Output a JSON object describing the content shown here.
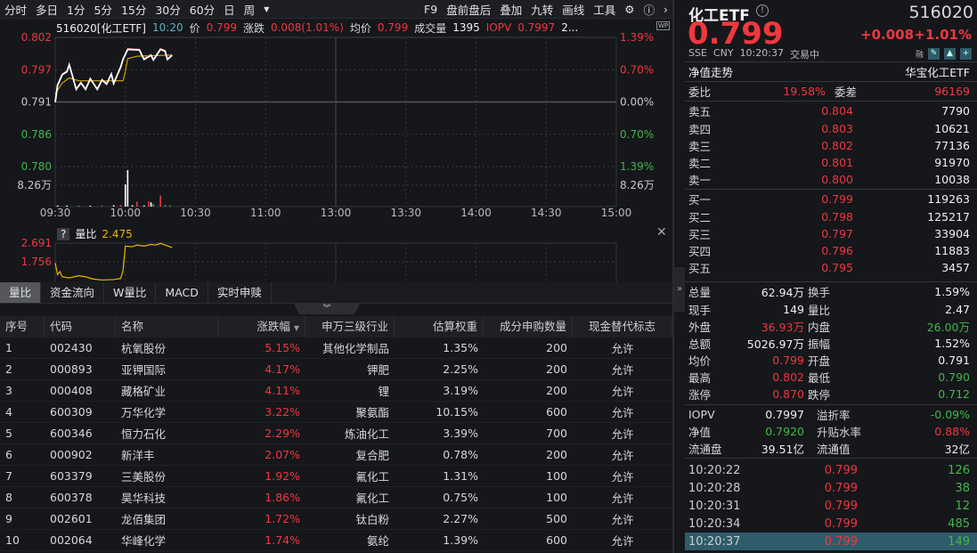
{
  "toolbar": {
    "periods": [
      "分时",
      "多日",
      "1分",
      "5分",
      "15分",
      "30分",
      "60分",
      "日",
      "周"
    ],
    "more_icon": "caret-down",
    "tools": [
      "F9",
      "盘前盘后",
      "叠加",
      "九转",
      "画线",
      "工具"
    ],
    "settings_icon": "gear",
    "help_icon": "question-circle",
    "next_icon": "chevron-right"
  },
  "infobar": {
    "title": "516020[化工ETF]",
    "time": "10:20",
    "price_label": "价",
    "price": "0.799",
    "change_label": "涨跌",
    "change": "0.008(1.01%)",
    "avg_label": "均价",
    "avg": "0.799",
    "vol_label": "成交量",
    "vol": "1395",
    "iopv_label": "IOPV",
    "iopv": "0.7997",
    "more": "2...",
    "wp_badge": "WP"
  },
  "colors": {
    "up": "#f0373e",
    "down": "#43b649",
    "price_line": "#ffffff",
    "avg_line": "#f2b600",
    "highlight": "#2e5c6a"
  },
  "chart_data": [
    {
      "type": "line",
      "y_ticks_left": [
        "0.802",
        "0.797",
        "0.791",
        "0.786",
        "0.780"
      ],
      "y_ticks_right": [
        "1.39%",
        "0.70%",
        "0.00%",
        "0.70%",
        "1.39%"
      ],
      "prev_close": 0.791,
      "ylim": [
        0.78,
        0.802
      ],
      "x_ticks": [
        "09:30",
        "10:00",
        "10:30",
        "11:00",
        "13:00",
        "13:30",
        "14:00",
        "14:30",
        "15:00"
      ],
      "price": [
        [
          "09:30",
          0.7911
        ],
        [
          "09:31",
          0.794
        ],
        [
          "09:33",
          0.7958
        ],
        [
          "09:35",
          0.7963
        ],
        [
          "09:36",
          0.7975
        ],
        [
          "09:39",
          0.7933
        ],
        [
          "09:41",
          0.7944
        ],
        [
          "09:43",
          0.7933
        ],
        [
          "09:45",
          0.7951
        ],
        [
          "09:48",
          0.7933
        ],
        [
          "09:50",
          0.7949
        ],
        [
          "09:52",
          0.7942
        ],
        [
          "09:54",
          0.7959
        ],
        [
          "09:55",
          0.7943
        ],
        [
          "09:58",
          0.7971
        ],
        [
          "09:59",
          0.7984
        ],
        [
          "10:01",
          0.8001
        ],
        [
          "10:06",
          0.8
        ],
        [
          "10:08",
          0.7984
        ],
        [
          "10:11",
          0.7991
        ],
        [
          "10:12",
          0.7983
        ],
        [
          "10:15",
          0.8001
        ],
        [
          "10:17",
          0.7998
        ],
        [
          "10:18",
          0.7984
        ],
        [
          "10:20",
          0.7991
        ]
      ],
      "avg": [
        [
          "09:30",
          0.7924
        ],
        [
          "09:33",
          0.7942
        ],
        [
          "09:36",
          0.7951
        ],
        [
          "09:40",
          0.7946
        ],
        [
          "09:59",
          0.7946
        ],
        [
          "10:00",
          0.7962
        ],
        [
          "10:01",
          0.7984
        ],
        [
          "10:05",
          0.7988
        ],
        [
          "10:20",
          0.799
        ]
      ],
      "volume_label": "8.26万",
      "volume_max": 16.52,
      "volume": [
        [
          "09:31",
          0.5,
          "w"
        ],
        [
          "09:35",
          0.5,
          "w"
        ],
        [
          "09:40",
          0.4,
          "g"
        ],
        [
          "09:45",
          0.4,
          "w"
        ],
        [
          "09:50",
          0.5,
          "r"
        ],
        [
          "09:55",
          0.6,
          "w"
        ],
        [
          "09:58",
          0.8,
          "r"
        ],
        [
          "10:00",
          9.8,
          "w"
        ],
        [
          "10:01",
          16.1,
          "w"
        ],
        [
          "10:03",
          0.6,
          "w"
        ],
        [
          "10:05",
          2.2,
          "r"
        ],
        [
          "10:08",
          0.5,
          "w"
        ],
        [
          "10:10",
          2.3,
          "r"
        ],
        [
          "10:11",
          1.9,
          "w"
        ],
        [
          "10:12",
          1.1,
          "g"
        ],
        [
          "10:15",
          4.9,
          "r"
        ],
        [
          "10:17",
          0.6,
          "g"
        ],
        [
          "10:19",
          0.5,
          "g"
        ]
      ]
    },
    {
      "type": "line",
      "title": "量比",
      "current": "2.475",
      "y_ticks": [
        "2.691",
        "1.756"
      ],
      "ylim": [
        0.8,
        2.691
      ],
      "values": [
        [
          "09:30",
          1.75
        ],
        [
          "09:31",
          1.2
        ],
        [
          "09:32",
          1.35
        ],
        [
          "09:33",
          1.1
        ],
        [
          "09:36",
          1.05
        ],
        [
          "09:38",
          1.1
        ],
        [
          "09:40",
          1.15
        ],
        [
          "09:43",
          1.1
        ],
        [
          "09:46",
          1.0
        ],
        [
          "09:50",
          0.95
        ],
        [
          "09:55",
          0.97
        ],
        [
          "09:58",
          1.02
        ],
        [
          "09:59",
          1.4
        ],
        [
          "10:00",
          2.55
        ],
        [
          "10:03",
          2.52
        ],
        [
          "10:05",
          2.6
        ],
        [
          "10:08",
          2.55
        ],
        [
          "10:11",
          2.63
        ],
        [
          "10:13",
          2.6
        ],
        [
          "10:15",
          2.68
        ],
        [
          "10:17",
          2.6
        ],
        [
          "10:18",
          2.56
        ],
        [
          "10:20",
          2.48
        ]
      ]
    }
  ],
  "subchart": {
    "help": "?",
    "close_icon": "close-x"
  },
  "tabs": [
    "量比",
    "资金流向",
    "W量比",
    "MACD",
    "实时申赎"
  ],
  "expander_icon": "double-chevron-down",
  "table": {
    "headers": [
      "序号",
      "代码",
      "名称",
      "涨跌幅",
      "申万三级行业",
      "估算权重",
      "成分申购数量",
      "现金替代标志"
    ],
    "sort_icon": "triangle-down",
    "rows": [
      [
        "1",
        "002430",
        "杭氧股份",
        "5.15%",
        "其他化学制品",
        "1.35%",
        "200",
        "允许"
      ],
      [
        "2",
        "000893",
        "亚钾国际",
        "4.17%",
        "钾肥",
        "2.25%",
        "200",
        "允许"
      ],
      [
        "3",
        "000408",
        "藏格矿业",
        "4.11%",
        "锂",
        "3.19%",
        "200",
        "允许"
      ],
      [
        "4",
        "600309",
        "万华化学",
        "3.22%",
        "聚氨酯",
        "10.15%",
        "600",
        "允许"
      ],
      [
        "5",
        "600346",
        "恒力石化",
        "2.29%",
        "炼油化工",
        "3.39%",
        "700",
        "允许"
      ],
      [
        "6",
        "000902",
        "新洋丰",
        "2.07%",
        "复合肥",
        "0.78%",
        "200",
        "允许"
      ],
      [
        "7",
        "603379",
        "三美股份",
        "1.92%",
        "氟化工",
        "1.31%",
        "100",
        "允许"
      ],
      [
        "8",
        "600378",
        "昊华科技",
        "1.86%",
        "氟化工",
        "0.75%",
        "100",
        "允许"
      ],
      [
        "9",
        "002601",
        "龙佰集团",
        "1.72%",
        "钛白粉",
        "2.27%",
        "500",
        "允许"
      ],
      [
        "10",
        "002064",
        "华峰化学",
        "1.74%",
        "氨纶",
        "1.39%",
        "600",
        "允许"
      ]
    ]
  },
  "quote": {
    "name": "化工ETF",
    "info_icon": "info-circle",
    "code": "516020",
    "price": "0.799",
    "change": "+0.008",
    "change_pct": "+1.01%",
    "exchange": "SSE",
    "currency": "CNY",
    "time": "10:20:37",
    "status": "交易中",
    "margin_badge": "融",
    "action_icons": [
      "edit",
      "bell",
      "plus"
    ],
    "nav_trend": "净值走势",
    "fund_name": "华宝化工ETF",
    "weibi_label": "委比",
    "weibi": "19.58%",
    "weicha_label": "委差",
    "weicha": "96169",
    "asks": [
      [
        "卖五",
        "0.804",
        "7790"
      ],
      [
        "卖四",
        "0.803",
        "10621"
      ],
      [
        "卖三",
        "0.802",
        "77136"
      ],
      [
        "卖二",
        "0.801",
        "91970"
      ],
      [
        "卖一",
        "0.800",
        "10038"
      ]
    ],
    "bids": [
      [
        "买一",
        "0.799",
        "119263"
      ],
      [
        "买二",
        "0.798",
        "125217"
      ],
      [
        "买三",
        "0.797",
        "33904"
      ],
      [
        "买四",
        "0.796",
        "11883"
      ],
      [
        "买五",
        "0.795",
        "3457"
      ]
    ],
    "stats": [
      [
        "总量",
        "62.94万",
        "w",
        "换手",
        "1.59%",
        "w"
      ],
      [
        "现手",
        "149",
        "w",
        "量比",
        "2.47",
        "w"
      ],
      [
        "外盘",
        "36.93万",
        "r",
        "内盘",
        "26.00万",
        "g"
      ],
      [
        "总额",
        "5026.97万",
        "w",
        "振幅",
        "1.52%",
        "w"
      ],
      [
        "均价",
        "0.799",
        "r",
        "开盘",
        "0.791",
        "w"
      ],
      [
        "最高",
        "0.802",
        "r",
        "最低",
        "0.790",
        "g"
      ],
      [
        "涨停",
        "0.870",
        "r",
        "跌停",
        "0.712",
        "g"
      ]
    ],
    "etf_stats": [
      [
        "IOPV",
        "0.7997",
        "w",
        "溢折率",
        "-0.09%",
        "g"
      ],
      [
        "净值",
        "0.7920",
        "g",
        "升贴水率",
        "0.88%",
        "r"
      ],
      [
        "流通盘",
        "39.51亿",
        "w",
        "流通值",
        "32亿",
        "w"
      ]
    ],
    "ticks": [
      [
        "10:20:22",
        "0.799",
        "126"
      ],
      [
        "10:20:28",
        "0.799",
        "38"
      ],
      [
        "10:20:31",
        "0.799",
        "12"
      ],
      [
        "10:20:34",
        "0.799",
        "485"
      ],
      [
        "10:20:37",
        "0.799",
        "149"
      ]
    ]
  }
}
